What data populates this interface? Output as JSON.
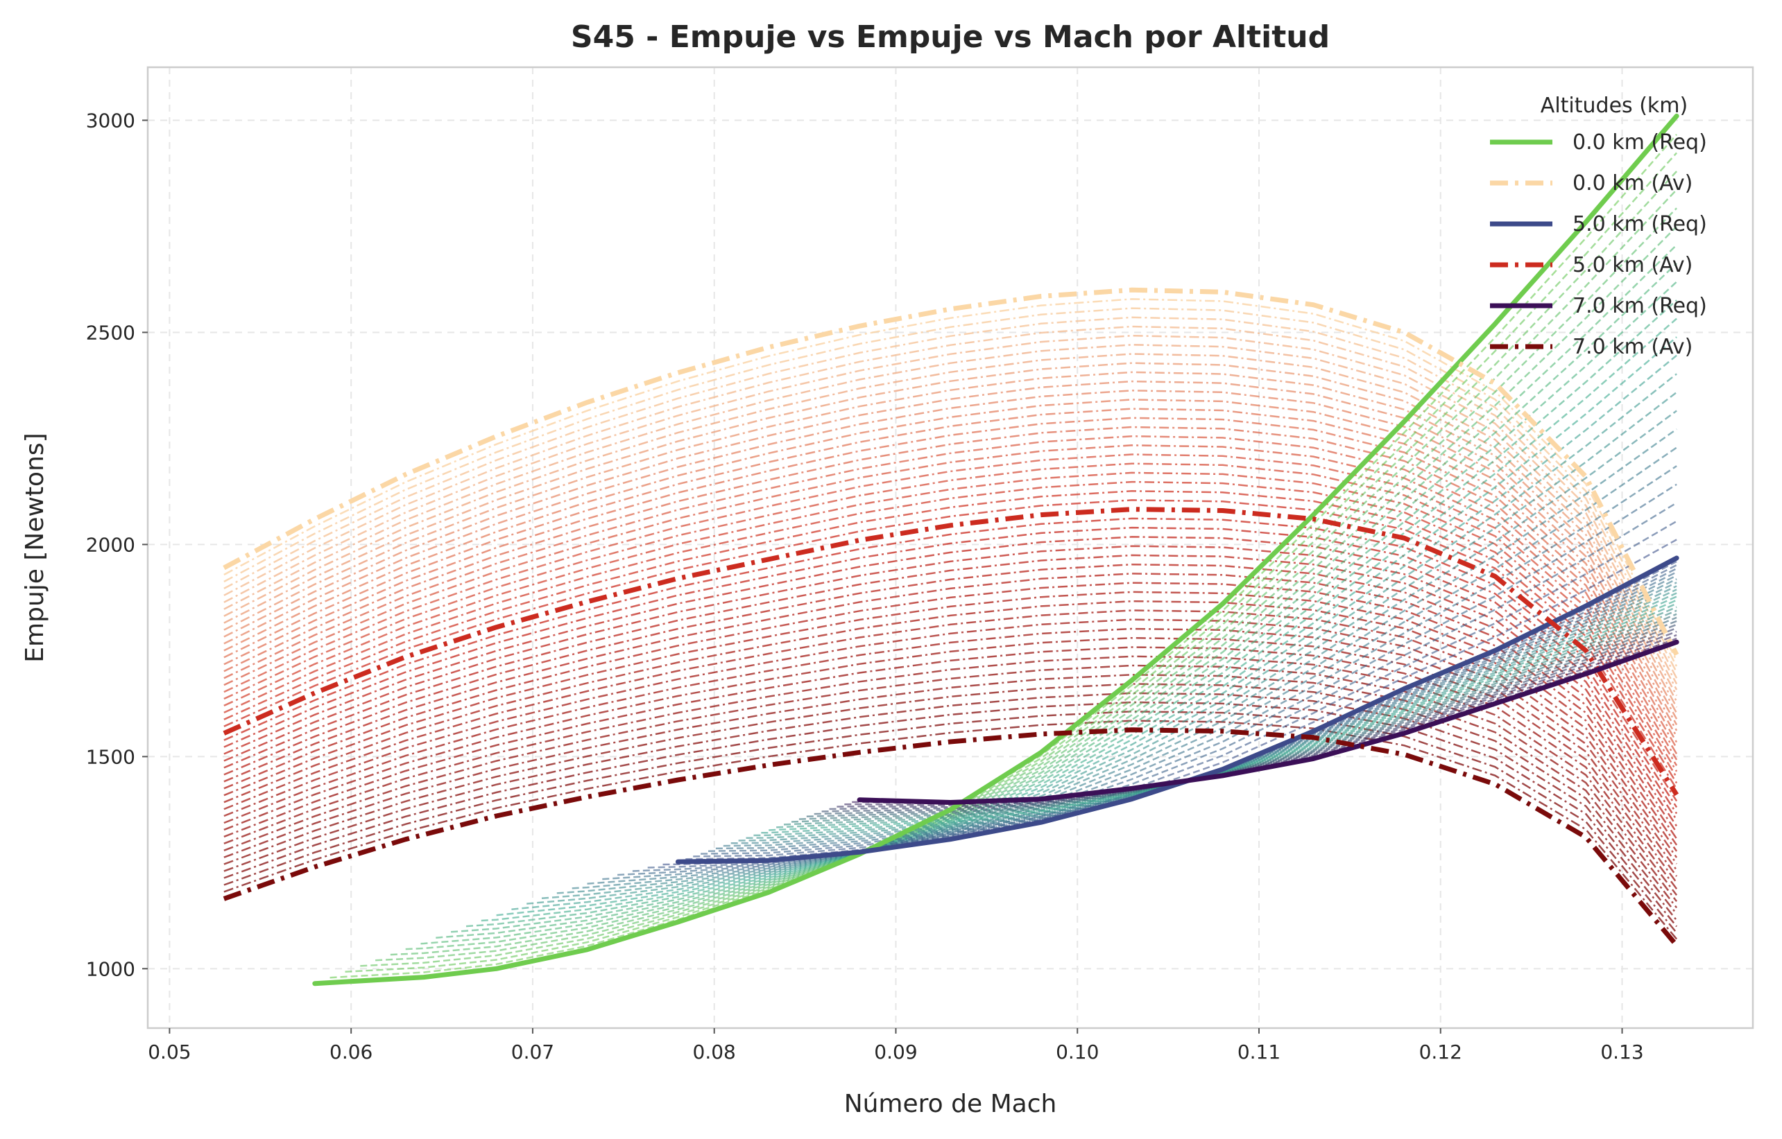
{
  "chart_data": {
    "type": "line",
    "title": "S45 - Empuje vs Empuje vs Mach por Altitud",
    "xlabel": "Número de Mach",
    "ylabel": "Empuje [Newtons]",
    "xlim": [
      0.0488,
      0.1372
    ],
    "ylim": [
      860,
      3125
    ],
    "x_ticks": [
      0.05,
      0.06,
      0.07,
      0.08,
      0.09,
      0.1,
      0.11,
      0.12,
      0.13
    ],
    "x_tick_labels": [
      "0.05",
      "0.06",
      "0.07",
      "0.08",
      "0.09",
      "0.10",
      "0.11",
      "0.12",
      "0.13"
    ],
    "y_ticks": [
      1000,
      1500,
      2000,
      2500,
      3000
    ],
    "y_tick_labels": [
      "1000",
      "1500",
      "2000",
      "2500",
      "3000"
    ],
    "grid": true,
    "legend_title": "Altitudes (km)",
    "legend_position": "top-right",
    "series": [
      {
        "name": "0.0 km (Req)",
        "kind": "required",
        "color": "#6fcc4e",
        "dash": "solid",
        "x": [
          0.058,
          0.064,
          0.068,
          0.073,
          0.078,
          0.083,
          0.088,
          0.093,
          0.098,
          0.103,
          0.108,
          0.113,
          0.118,
          0.123,
          0.128,
          0.133
        ],
        "y": [
          965,
          980,
          1000,
          1045,
          1110,
          1180,
          1270,
          1375,
          1510,
          1680,
          1860,
          2070,
          2290,
          2520,
          2760,
          3010
        ]
      },
      {
        "name": "0.0 km (Av)",
        "kind": "available",
        "color": "#fbd7a5",
        "dash": "dashdot",
        "x": [
          0.053,
          0.058,
          0.063,
          0.068,
          0.073,
          0.078,
          0.083,
          0.088,
          0.093,
          0.098,
          0.103,
          0.108,
          0.113,
          0.118,
          0.123,
          0.128,
          0.133
        ],
        "y": [
          1945,
          2060,
          2165,
          2255,
          2335,
          2405,
          2465,
          2515,
          2555,
          2585,
          2600,
          2595,
          2565,
          2500,
          2380,
          2160,
          1740
        ]
      },
      {
        "name": "5.0 km (Req)",
        "kind": "required",
        "color": "#3d4a8a",
        "dash": "solid",
        "x": [
          0.078,
          0.083,
          0.088,
          0.093,
          0.098,
          0.103,
          0.108,
          0.113,
          0.118,
          0.123,
          0.128,
          0.133
        ],
        "y": [
          1252,
          1255,
          1275,
          1305,
          1345,
          1400,
          1470,
          1560,
          1660,
          1750,
          1855,
          1968
        ]
      },
      {
        "name": "5.0 km (Av)",
        "kind": "available",
        "color": "#cc2b1f",
        "dash": "dashdot",
        "x": [
          0.053,
          0.058,
          0.063,
          0.068,
          0.073,
          0.078,
          0.083,
          0.088,
          0.093,
          0.098,
          0.103,
          0.108,
          0.113,
          0.118,
          0.123,
          0.128,
          0.133
        ],
        "y": [
          1555,
          1650,
          1735,
          1805,
          1865,
          1920,
          1965,
          2010,
          2045,
          2070,
          2083,
          2080,
          2060,
          2015,
          1925,
          1750,
          1410
        ]
      },
      {
        "name": "7.0 km (Req)",
        "kind": "required",
        "color": "#3b0f57",
        "dash": "solid",
        "x": [
          0.088,
          0.093,
          0.098,
          0.103,
          0.108,
          0.113,
          0.118,
          0.123,
          0.128,
          0.133
        ],
        "y": [
          1398,
          1392,
          1400,
          1425,
          1455,
          1495,
          1555,
          1625,
          1695,
          1770
        ]
      },
      {
        "name": "7.0 km (Av)",
        "kind": "available",
        "color": "#7a0a0a",
        "dash": "dashdot",
        "x": [
          0.053,
          0.058,
          0.063,
          0.068,
          0.073,
          0.078,
          0.083,
          0.088,
          0.093,
          0.098,
          0.103,
          0.108,
          0.113,
          0.118,
          0.123,
          0.128,
          0.133
        ],
        "y": [
          1165,
          1240,
          1305,
          1360,
          1405,
          1445,
          1480,
          1510,
          1535,
          1553,
          1563,
          1560,
          1545,
          1505,
          1435,
          1310,
          1055
        ]
      }
    ]
  }
}
